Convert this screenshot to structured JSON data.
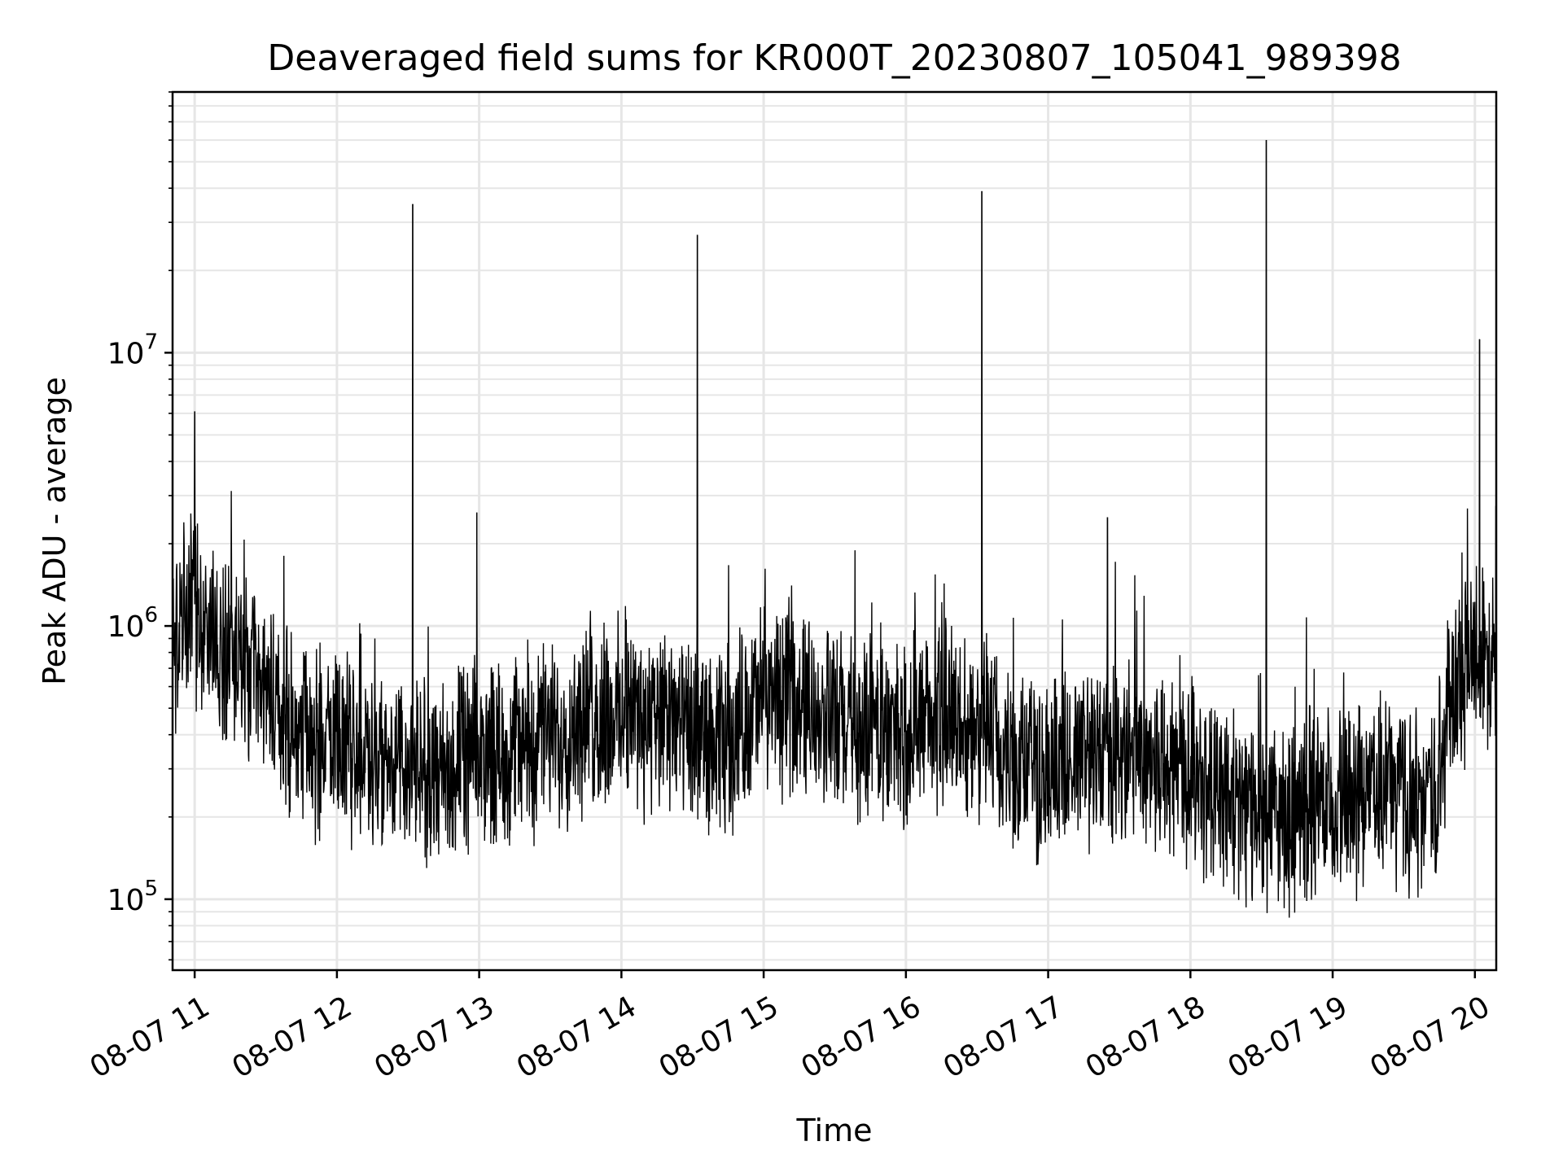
{
  "chart_data": {
    "type": "line",
    "title": "Deaveraged field sums for KR000T_20230807_105041_989398",
    "xlabel": "Time",
    "ylabel": "Peak ADU - average",
    "yscale": "log",
    "xlim": [
      "2023-08-07 10:50:41",
      "2023-08-07 20:09:00"
    ],
    "ylim": [
      55000,
      90000000
    ],
    "grid": true,
    "line_color": "#000000",
    "x_ticks": [
      {
        "at": "2023-08-07 11:00",
        "label": "08-07 11"
      },
      {
        "at": "2023-08-07 12:00",
        "label": "08-07 12"
      },
      {
        "at": "2023-08-07 13:00",
        "label": "08-07 13"
      },
      {
        "at": "2023-08-07 14:00",
        "label": "08-07 14"
      },
      {
        "at": "2023-08-07 15:00",
        "label": "08-07 15"
      },
      {
        "at": "2023-08-07 16:00",
        "label": "08-07 16"
      },
      {
        "at": "2023-08-07 17:00",
        "label": "08-07 17"
      },
      {
        "at": "2023-08-07 18:00",
        "label": "08-07 18"
      },
      {
        "at": "2023-08-07 19:00",
        "label": "08-07 19"
      },
      {
        "at": "2023-08-07 20:00",
        "label": "08-07 20"
      }
    ],
    "y_ticks": [
      {
        "value": 100000,
        "base": "10",
        "exp": "5"
      },
      {
        "value": 1000000,
        "base": "10",
        "exp": "6"
      },
      {
        "value": 10000000,
        "base": "10",
        "exp": "7"
      }
    ],
    "baseline": [
      {
        "x": "2023-08-07 10:51",
        "y": 850000
      },
      {
        "x": "2023-08-07 11:00",
        "y": 1200000
      },
      {
        "x": "2023-08-07 11:10",
        "y": 900000
      },
      {
        "x": "2023-08-07 11:20",
        "y": 700000
      },
      {
        "x": "2023-08-07 11:30",
        "y": 550000
      },
      {
        "x": "2023-08-07 11:40",
        "y": 420000
      },
      {
        "x": "2023-08-07 12:00",
        "y": 360000
      },
      {
        "x": "2023-08-07 12:20",
        "y": 320000
      },
      {
        "x": "2023-08-07 12:40",
        "y": 280000
      },
      {
        "x": "2023-08-07 13:00",
        "y": 330000
      },
      {
        "x": "2023-08-07 13:20",
        "y": 380000
      },
      {
        "x": "2023-08-07 13:40",
        "y": 420000
      },
      {
        "x": "2023-08-07 14:00",
        "y": 480000
      },
      {
        "x": "2023-08-07 14:20",
        "y": 430000
      },
      {
        "x": "2023-08-07 14:40",
        "y": 350000
      },
      {
        "x": "2023-08-07 15:00",
        "y": 550000
      },
      {
        "x": "2023-08-07 15:20",
        "y": 500000
      },
      {
        "x": "2023-08-07 15:40",
        "y": 400000
      },
      {
        "x": "2023-08-07 16:00",
        "y": 420000
      },
      {
        "x": "2023-08-07 16:20",
        "y": 450000
      },
      {
        "x": "2023-08-07 16:40",
        "y": 350000
      },
      {
        "x": "2023-08-07 17:00",
        "y": 280000
      },
      {
        "x": "2023-08-07 17:20",
        "y": 350000
      },
      {
        "x": "2023-08-07 17:40",
        "y": 330000
      },
      {
        "x": "2023-08-07 18:00",
        "y": 300000
      },
      {
        "x": "2023-08-07 18:20",
        "y": 220000
      },
      {
        "x": "2023-08-07 18:40",
        "y": 200000
      },
      {
        "x": "2023-08-07 19:00",
        "y": 220000
      },
      {
        "x": "2023-08-07 19:20",
        "y": 250000
      },
      {
        "x": "2023-08-07 19:40",
        "y": 220000
      },
      {
        "x": "2023-08-07 19:45",
        "y": 300000
      },
      {
        "x": "2023-08-07 19:50",
        "y": 600000
      },
      {
        "x": "2023-08-07 20:00",
        "y": 800000
      },
      {
        "x": "2023-08-07 20:09",
        "y": 850000
      }
    ],
    "spikes": [
      {
        "x": "2023-08-07 11:00",
        "y": 6100000
      },
      {
        "x": "2023-08-07 12:32",
        "y": 35000000
      },
      {
        "x": "2023-08-07 12:59",
        "y": 2600000
      },
      {
        "x": "2023-08-07 14:32",
        "y": 27000000
      },
      {
        "x": "2023-08-07 16:32",
        "y": 39000000
      },
      {
        "x": "2023-08-07 17:25",
        "y": 2500000
      },
      {
        "x": "2023-08-07 18:32",
        "y": 60000000
      },
      {
        "x": "2023-08-07 20:02",
        "y": 11200000
      }
    ]
  }
}
